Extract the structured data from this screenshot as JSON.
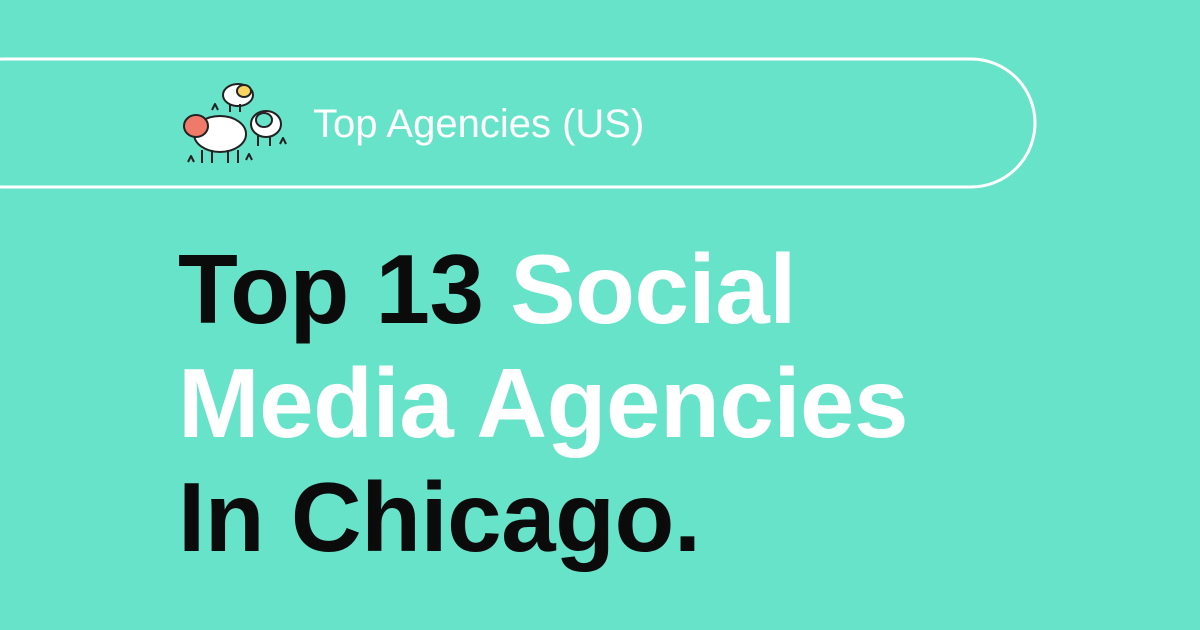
{
  "badge": {
    "label": "Top Agencies (US)"
  },
  "headline": {
    "lines": [
      [
        "Top 13",
        "Social"
      ],
      [
        "Media Agencies"
      ],
      [
        "In Chicago."
      ]
    ]
  }
}
